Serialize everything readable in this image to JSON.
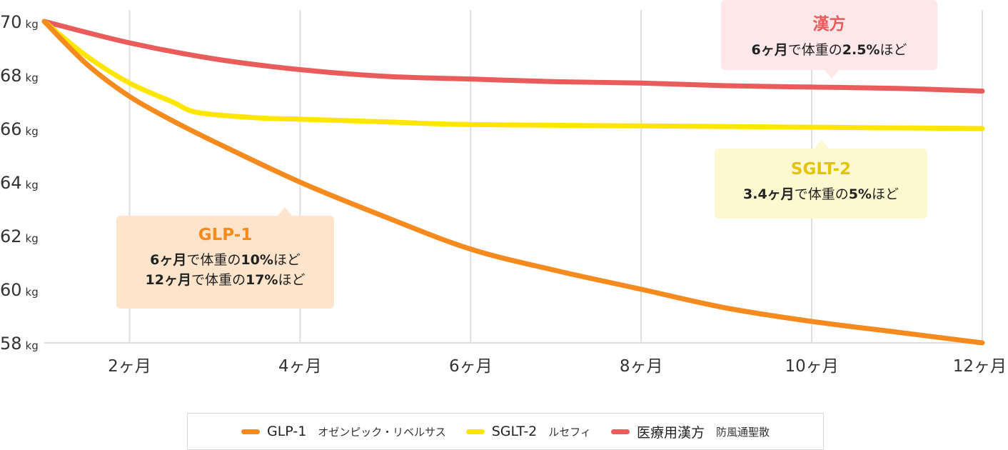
{
  "chart_data": {
    "type": "line",
    "y_unit": "kg",
    "x_unit": "ヶ月",
    "ylim": [
      58,
      70
    ],
    "xlim": [
      1,
      12
    ],
    "yticks": [
      58,
      60,
      62,
      64,
      66,
      68,
      70
    ],
    "xticks": [
      2,
      4,
      6,
      8,
      10,
      12
    ],
    "ytick_labels": [
      "58",
      "60",
      "62",
      "64",
      "66",
      "68",
      "70"
    ],
    "xtick_labels": [
      "2ヶ月",
      "4ヶ月",
      "6ヶ月",
      "8ヶ月",
      "10ヶ月",
      "12ヶ月"
    ],
    "grid": "vertical",
    "legend_placement": "bottom-center",
    "series": [
      {
        "name": "GLP-1",
        "sub": "オゼンピック・リベルサス",
        "color": "#f58a1f",
        "points": [
          [
            1,
            70
          ],
          [
            1.5,
            68.4
          ],
          [
            2,
            67.2
          ],
          [
            2.5,
            66.3
          ],
          [
            3,
            65.5
          ],
          [
            4,
            64.0
          ],
          [
            5,
            62.7
          ],
          [
            6,
            61.5
          ],
          [
            7,
            60.7
          ],
          [
            8,
            60.0
          ],
          [
            9,
            59.3
          ],
          [
            10,
            58.8
          ],
          [
            11,
            58.4
          ],
          [
            12,
            58.0
          ]
        ]
      },
      {
        "name": "SGLT-2",
        "sub": "ルセフィ",
        "color": "#ffe600",
        "points": [
          [
            1,
            70
          ],
          [
            1.5,
            68.7
          ],
          [
            2,
            67.7
          ],
          [
            2.5,
            67.0
          ],
          [
            2.8,
            66.6
          ],
          [
            3.5,
            66.4
          ],
          [
            4,
            66.35
          ],
          [
            5,
            66.25
          ],
          [
            6,
            66.15
          ],
          [
            8,
            66.1
          ],
          [
            10,
            66.05
          ],
          [
            12,
            66.0
          ]
        ]
      },
      {
        "name": "医療用漢方",
        "sub": "防風通聖散",
        "color": "#ea5c5c",
        "points": [
          [
            1,
            70
          ],
          [
            2,
            69.2
          ],
          [
            3,
            68.6
          ],
          [
            4,
            68.2
          ],
          [
            5,
            67.95
          ],
          [
            6,
            67.85
          ],
          [
            7,
            67.75
          ],
          [
            8,
            67.7
          ],
          [
            9,
            67.6
          ],
          [
            10,
            67.55
          ],
          [
            11,
            67.5
          ],
          [
            12,
            67.4
          ]
        ]
      }
    ],
    "annotations": [
      {
        "title": "漢方",
        "lines": [
          {
            "bold": "6ヶ月",
            "rest": "で体重の",
            "bold2": "2.5%",
            "rest2": "ほど"
          }
        ]
      },
      {
        "title": "SGLT-2",
        "lines": [
          {
            "bold": "3.4ヶ月",
            "rest": "で体重の",
            "bold2": "5%",
            "rest2": "ほど"
          }
        ]
      },
      {
        "title": "GLP-1",
        "lines": [
          {
            "bold": "6ヶ月",
            "rest": "で体重の",
            "bold2": "10%",
            "rest2": "ほど"
          },
          {
            "bold": "12ヶ月",
            "rest": "で体重の",
            "bold2": "17%",
            "rest2": "ほど"
          }
        ]
      }
    ]
  },
  "legend": [
    {
      "name": "GLP-1",
      "sub": "オゼンピック・リベルサス",
      "color": "#f58a1f"
    },
    {
      "name": "SGLT-2",
      "sub": "ルセフィ",
      "color": "#ffe600"
    },
    {
      "name": "医療用漢方",
      "sub": "防風通聖散",
      "color": "#ea5c5c"
    }
  ]
}
